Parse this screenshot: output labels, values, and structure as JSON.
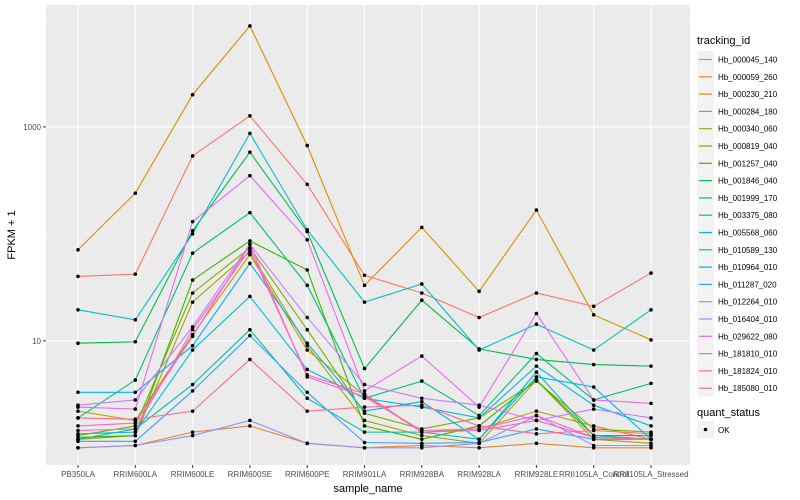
{
  "chart_data": {
    "type": "line",
    "xlabel": "sample_name",
    "ylabel": "FPKM + 1",
    "yscale": "log10",
    "ylim": [
      0.69,
      13800
    ],
    "yticks": [
      {
        "value": 1000,
        "label": "1000"
      },
      {
        "value": 10,
        "label": "10"
      }
    ],
    "grid": true,
    "legend_position": "right",
    "categories": [
      "PB350LA",
      "RRIM600LA",
      "RRIM600LE",
      "RRIM600SE",
      "RRIM600PE",
      "RRIM901LA",
      "RRIM928BA",
      "RRIM928LA",
      "RRIM928LE",
      "RRII105LA_Control",
      "RRII105LA_Stressed"
    ],
    "legend_title": "tracking_id",
    "shape_legend_title": "quant_status",
    "shape_legend_items": [
      "OK"
    ],
    "series": [
      {
        "name": "Hb_000045_140",
        "color": "#F8766D",
        "values": [
          40,
          42,
          535,
          1270,
          290,
          41,
          28,
          16.5,
          28,
          21,
          43
        ]
      },
      {
        "name": "Hb_000059_260",
        "color": "#EA8331",
        "values": [
          1.0,
          1.05,
          1.4,
          1.6,
          1.1,
          1.0,
          1.05,
          1.0,
          1.1,
          1.0,
          1.0
        ]
      },
      {
        "name": "Hb_000230_210",
        "color": "#D89000",
        "values": [
          71,
          240,
          2000,
          8800,
          670,
          33,
          115,
          29,
          167,
          17.5,
          10.2
        ]
      },
      {
        "name": "Hb_000284_180",
        "color": "#C09B00",
        "values": [
          2.2,
          1.8,
          11.4,
          64,
          8.2,
          3.1,
          1.4,
          1.5,
          2.2,
          1.6,
          1.2
        ]
      },
      {
        "name": "Hb_000340_060",
        "color": "#A3A500",
        "values": [
          1.2,
          1.3,
          23,
          68,
          9,
          1.8,
          1.3,
          1.1,
          4.3,
          1.2,
          1.1
        ]
      },
      {
        "name": "Hb_000819_040",
        "color": "#7CAE00",
        "values": [
          1.3,
          1.6,
          28,
          74,
          12.7,
          2.1,
          1.5,
          1.9,
          4.2,
          1.5,
          1.4
        ]
      },
      {
        "name": "Hb_001257_040",
        "color": "#39B600",
        "values": [
          1.25,
          1.3,
          37,
          86,
          46,
          1.6,
          1.2,
          1.6,
          4.3,
          1.3,
          1.3
        ]
      },
      {
        "name": "Hb_001846_040",
        "color": "#00BB4E",
        "values": [
          9.5,
          9.8,
          107,
          580,
          105,
          5.5,
          24,
          8.4,
          6.7,
          6,
          5.8
        ]
      },
      {
        "name": "Hb_001999_170",
        "color": "#00BF7D",
        "values": [
          1.9,
          4.3,
          66,
          158,
          33,
          2.9,
          4.2,
          2.0,
          7.6,
          2.8,
          4.0
        ]
      },
      {
        "name": "Hb_003375_080",
        "color": "#00C1A3",
        "values": [
          1.2,
          1.5,
          3.9,
          12.7,
          2.9,
          1.4,
          1.4,
          1.2,
          5.1,
          1.3,
          1.2
        ]
      },
      {
        "name": "Hb_005568_060",
        "color": "#00BFC4",
        "values": [
          19.5,
          15.7,
          100,
          870,
          109,
          23,
          34,
          8.2,
          14.3,
          8.2,
          19.5
        ]
      },
      {
        "name": "Hb_010589_130",
        "color": "#00BAE0",
        "values": [
          1.35,
          1.4,
          8.2,
          26,
          5.4,
          2.9,
          2.4,
          1.9,
          5.8,
          2.5,
          1.6
        ]
      },
      {
        "name": "Hb_010964_010",
        "color": "#00B0F6",
        "values": [
          3.3,
          3.3,
          9,
          53,
          9.5,
          2.2,
          2.7,
          1.2,
          4.6,
          3.7,
          1.2
        ]
      },
      {
        "name": "Hb_011287_020",
        "color": "#35A2FF",
        "values": [
          1.15,
          1.15,
          3.4,
          11.2,
          3.3,
          1.12,
          1.1,
          1.12,
          1.5,
          1.2,
          1.2
        ]
      },
      {
        "name": "Hb_012264_010",
        "color": "#9590FF",
        "values": [
          1.0,
          1.05,
          1.3,
          1.8,
          1.1,
          1.0,
          1.0,
          1.1,
          2.0,
          1.05,
          1.05
        ]
      },
      {
        "name": "Hb_016404_010",
        "color": "#C77CFF",
        "values": [
          2.5,
          2.8,
          13.5,
          80,
          16.5,
          3.9,
          2.9,
          2.5,
          1.8,
          2.3,
          1.9
        ]
      },
      {
        "name": "Hb_029622_080",
        "color": "#E76BF3",
        "values": [
          2.4,
          2.3,
          130,
          350,
          88,
          3.4,
          7.2,
          2.4,
          18,
          2.8,
          2.6
        ]
      },
      {
        "name": "Hb_181810_010",
        "color": "#FA62DB",
        "values": [
          1.6,
          1.7,
          11,
          80,
          4.6,
          3.0,
          1.45,
          1.5,
          2.0,
          1.25,
          1.2
        ]
      },
      {
        "name": "Hb_181824_010",
        "color": "#FF62BC",
        "values": [
          1.45,
          1.5,
          12.7,
          72,
          4.8,
          3.2,
          1.4,
          1.45,
          1.8,
          1.25,
          1.2
        ]
      },
      {
        "name": "Hb_185080_010",
        "color": "#FF6C91",
        "values": [
          1.9,
          1.85,
          2.2,
          6.7,
          2.2,
          2.4,
          2.5,
          1.6,
          1.35,
          1.45,
          1.35
        ]
      }
    ]
  }
}
